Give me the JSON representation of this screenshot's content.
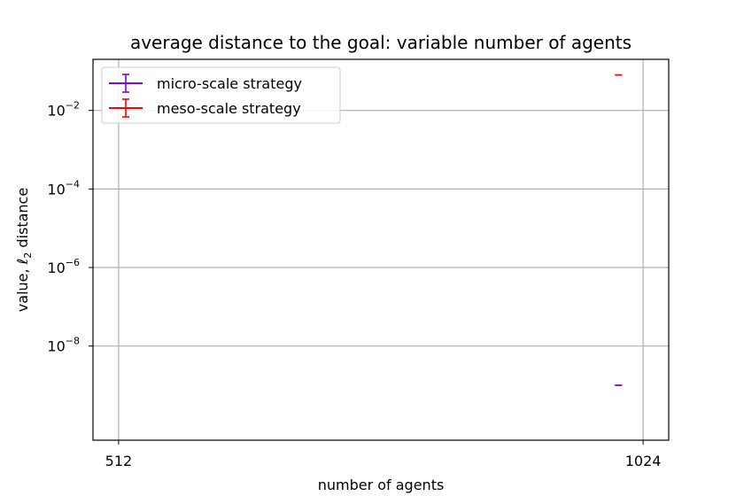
{
  "chart_data": {
    "type": "line",
    "title": "average distance to the goal: variable number of agents",
    "xlabel": "number of agents",
    "ylabel": "value, ℓ₂ distance",
    "ylabel_prefix": "value, ",
    "ylabel_symbol": "ℓ",
    "ylabel_subscript": "2",
    "ylabel_suffix": " distance",
    "x_ticks": [
      512,
      1024
    ],
    "y_scale": "log",
    "y_ticks": [
      {
        "value": 1e-08,
        "base": "10",
        "exp": "−8"
      },
      {
        "value": 1e-06,
        "base": "10",
        "exp": "−6"
      },
      {
        "value": 0.0001,
        "base": "10",
        "exp": "−4"
      },
      {
        "value": 0.01,
        "base": "10",
        "exp": "−2"
      }
    ],
    "xlim": [
      487,
      1049
    ],
    "ylim": [
      4e-11,
      0.2
    ],
    "grid": true,
    "legend_position": "upper left",
    "series": [
      {
        "name": "micro-scale strategy",
        "color": "#7f00ff",
        "x": [
          1000
        ],
        "y": [
          1e-09
        ],
        "err_low": [
          1e-09
        ],
        "err_high": [
          1e-09
        ]
      },
      {
        "name": "meso-scale strategy",
        "color": "#ff0000",
        "x": [
          1000
        ],
        "y": [
          0.08
        ],
        "err_low": [
          0.08
        ],
        "err_high": [
          0.08
        ]
      }
    ]
  }
}
